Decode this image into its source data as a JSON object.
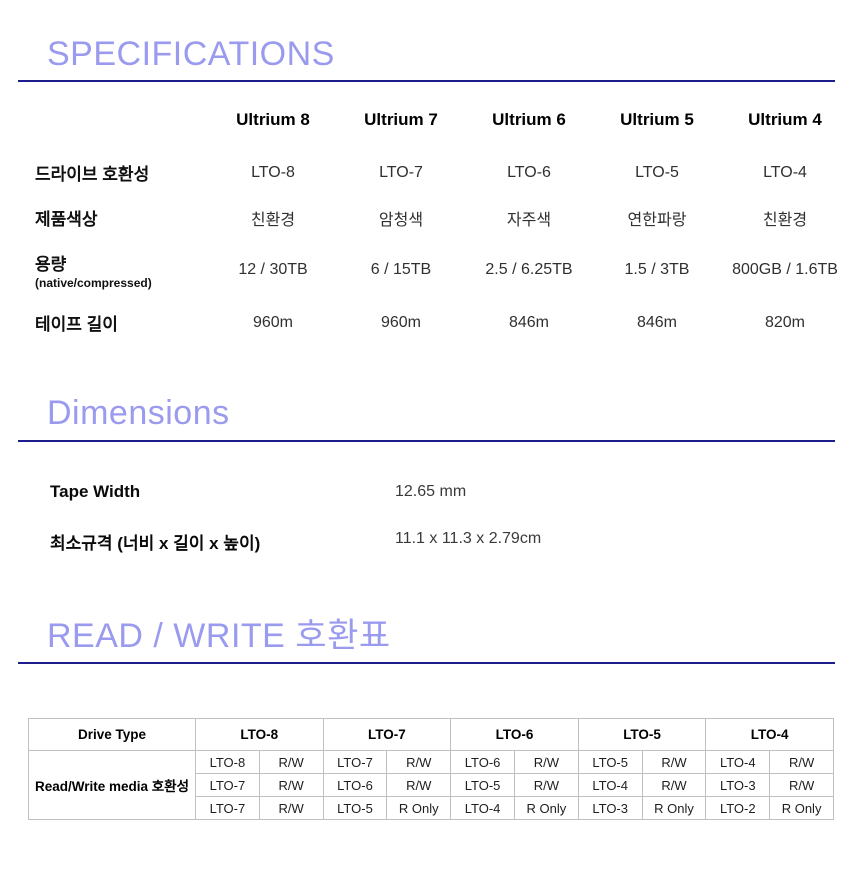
{
  "headings": {
    "specifications": "SPECIFICATIONS",
    "dimensions": "Dimensions",
    "read_write": "READ / WRITE 호환표",
    "accent_color": "#9a9aee",
    "underline_color": "#1d1d8d"
  },
  "spec_table": {
    "columns": [
      "Ultrium 8",
      "Ultrium 7",
      "Ultrium 6",
      "Ultrium 5",
      "Ultrium 4"
    ],
    "rows": [
      {
        "label": "드라이브 호환성",
        "sublabel": "",
        "values": [
          "LTO-8",
          "LTO-7",
          "LTO-6",
          "LTO-5",
          "LTO-4"
        ]
      },
      {
        "label": "제품색상",
        "sublabel": "",
        "values": [
          "친환경",
          "암청색",
          "자주색",
          "연한파랑",
          "친환경"
        ]
      },
      {
        "label": "용량",
        "sublabel": "(native/compressed)",
        "values": [
          "12 / 30TB",
          "6 / 15TB",
          "2.5 / 6.25TB",
          "1.5 / 3TB",
          "800GB / 1.6TB"
        ]
      },
      {
        "label": "테이프 길이",
        "sublabel": "",
        "values": [
          "960m",
          "960m",
          "846m",
          "846m",
          "820m"
        ]
      }
    ]
  },
  "dimensions": {
    "rows": [
      {
        "label": "Tape Width",
        "value": "12.65 mm"
      },
      {
        "label": "최소규격 (너비 x 길이 x 높이)",
        "value": "11.1 x 11.3 x 2.79cm"
      }
    ]
  },
  "rw_table": {
    "drive_type_header": "Drive Type",
    "row_label": "Read/Write media 호환성",
    "groups": [
      {
        "header": "LTO-8",
        "rows": [
          [
            "LTO-8",
            "R/W"
          ],
          [
            "LTO-7",
            "R/W"
          ],
          [
            "LTO-7",
            "R/W"
          ]
        ]
      },
      {
        "header": "LTO-7",
        "rows": [
          [
            "LTO-7",
            "R/W"
          ],
          [
            "LTO-6",
            "R/W"
          ],
          [
            "LTO-5",
            "R Only"
          ]
        ]
      },
      {
        "header": "LTO-6",
        "rows": [
          [
            "LTO-6",
            "R/W"
          ],
          [
            "LTO-5",
            "R/W"
          ],
          [
            "LTO-4",
            "R Only"
          ]
        ]
      },
      {
        "header": "LTO-5",
        "rows": [
          [
            "LTO-5",
            "R/W"
          ],
          [
            "LTO-4",
            "R/W"
          ],
          [
            "LTO-3",
            "R Only"
          ]
        ]
      },
      {
        "header": "LTO-4",
        "rows": [
          [
            "LTO-4",
            "R/W"
          ],
          [
            "LTO-3",
            "R/W"
          ],
          [
            "LTO-2",
            "R Only"
          ]
        ]
      }
    ]
  }
}
